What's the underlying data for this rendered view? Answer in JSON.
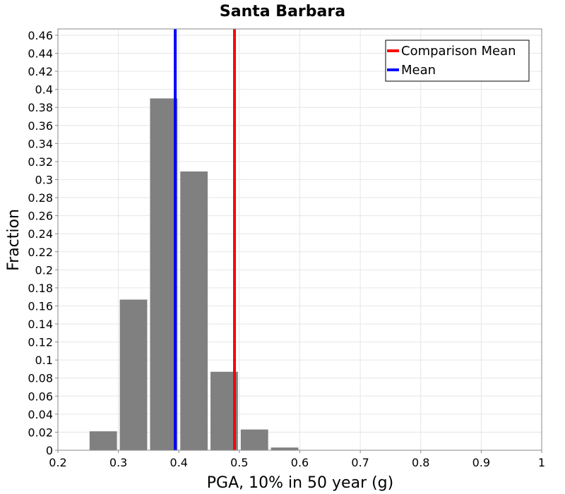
{
  "chart_data": {
    "type": "bar",
    "title": "Santa Barbara",
    "xlabel": "PGA, 10% in 50 year (g)",
    "ylabel": "Fraction",
    "xlim": [
      0.2,
      1.0
    ],
    "ylim": [
      0,
      0.467
    ],
    "xticks": [
      "0.2",
      "0.3",
      "0.4",
      "0.5",
      "0.6",
      "0.7",
      "0.8",
      "0.9",
      "1"
    ],
    "yticks": [
      "0",
      "0.02",
      "0.04",
      "0.06",
      "0.08",
      "0.1",
      "0.12",
      "0.14",
      "0.16",
      "0.18",
      "0.2",
      "0.22",
      "0.24",
      "0.26",
      "0.28",
      "0.3",
      "0.32",
      "0.34",
      "0.36",
      "0.38",
      "0.4",
      "0.42",
      "0.44",
      "0.46"
    ],
    "bin_width": 0.05,
    "bins": [
      {
        "center": 0.275,
        "value": 0.021
      },
      {
        "center": 0.325,
        "value": 0.167
      },
      {
        "center": 0.375,
        "value": 0.39
      },
      {
        "center": 0.425,
        "value": 0.309
      },
      {
        "center": 0.475,
        "value": 0.087
      },
      {
        "center": 0.525,
        "value": 0.023
      },
      {
        "center": 0.575,
        "value": 0.003
      }
    ],
    "vlines": [
      {
        "name": "Comparison Mean",
        "x": 0.492,
        "color": "#ff0000"
      },
      {
        "name": "Mean",
        "x": 0.394,
        "color": "#0000ff"
      }
    ],
    "bar_color": "#808080",
    "grid": true,
    "legend_position": "top-right"
  }
}
